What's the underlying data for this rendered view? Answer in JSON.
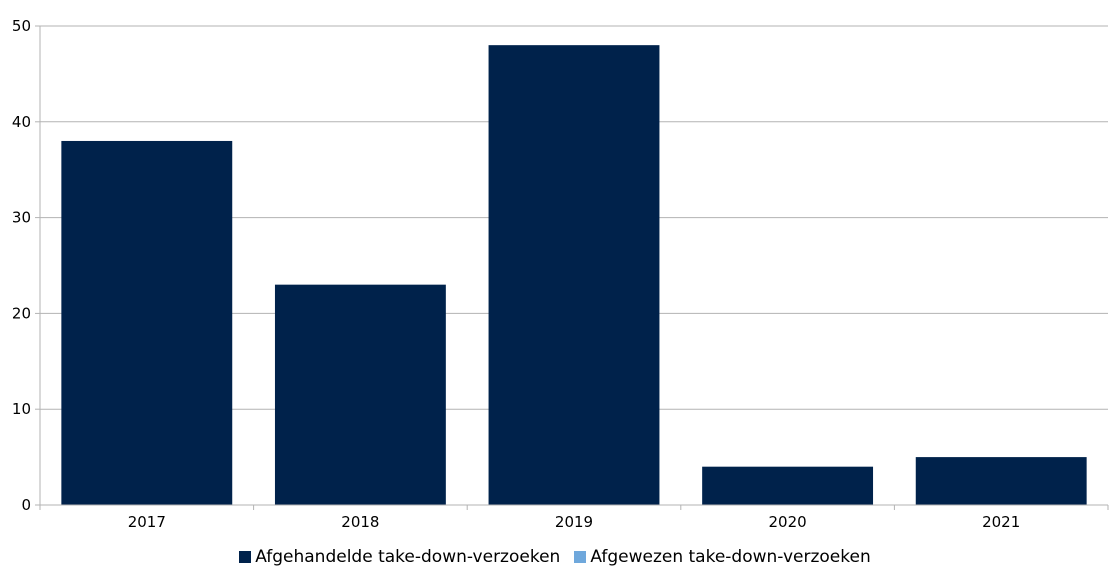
{
  "colors": {
    "afgehandeld": "#00224b",
    "afgewezen": "#6fa8dc",
    "grid": "#b3b3b3",
    "axis": "#b3b3b3"
  },
  "chart_data": {
    "type": "bar",
    "categories": [
      "2017",
      "2018",
      "2019",
      "2020",
      "2021"
    ],
    "series": [
      {
        "name": "Afgehandelde take-down-verzoeken",
        "values": [
          38,
          23,
          48,
          4,
          5
        ]
      },
      {
        "name": "Afgewezen take-down-verzoeken",
        "values": [
          0,
          0,
          0,
          0,
          0
        ]
      }
    ],
    "ylim": [
      0,
      50
    ],
    "yticks": [
      "0",
      "10",
      "20",
      "30",
      "40",
      "50"
    ],
    "title": "",
    "xlabel": "",
    "ylabel": "",
    "grid": true,
    "legend_position": "bottom"
  }
}
